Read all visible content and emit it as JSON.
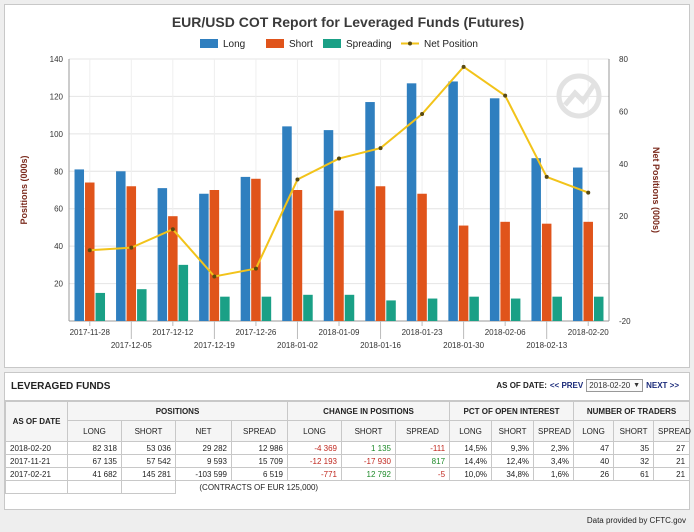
{
  "chart_data": {
    "type": "bar",
    "title": "EUR/USD COT Report for Leveraged Funds (Futures)",
    "categories": [
      "2017-11-28",
      "2017-12-05",
      "2017-12-12",
      "2017-12-19",
      "2017-12-26",
      "2018-01-02",
      "2018-01-09",
      "2018-01-16",
      "2018-01-23",
      "2018-01-30",
      "2018-02-06",
      "2018-02-13",
      "2018-02-20"
    ],
    "series": [
      {
        "name": "Long",
        "axis": "left",
        "kind": "bar",
        "color": "#2f7fbf",
        "values": [
          81,
          80,
          71,
          68,
          77,
          104,
          102,
          117,
          127,
          128,
          119,
          87,
          82
        ]
      },
      {
        "name": "Short",
        "axis": "left",
        "kind": "bar",
        "color": "#e0541b",
        "values": [
          74,
          72,
          56,
          70,
          76,
          70,
          59,
          72,
          68,
          51,
          53,
          52,
          53
        ]
      },
      {
        "name": "Spreading",
        "axis": "left",
        "kind": "bar",
        "color": "#1aa086",
        "values": [
          15,
          17,
          30,
          13,
          13,
          14,
          14,
          11,
          12,
          13,
          12,
          13,
          13
        ]
      },
      {
        "name": "Net Position",
        "axis": "right",
        "kind": "line",
        "color": "#f2c31a",
        "values": [
          7,
          8,
          15,
          -3,
          0,
          34,
          42,
          46,
          59,
          77,
          66,
          35,
          29
        ]
      }
    ],
    "ylabel_left": "Positions (000s)",
    "ylabel_right": "Net Positions (000s)",
    "ylim_left": [
      0,
      140
    ],
    "yticks_left": [
      20,
      40,
      60,
      80,
      100,
      120,
      140
    ],
    "ylim_right": [
      -20,
      80
    ],
    "yticks_right": [
      -20,
      20,
      40,
      60,
      80
    ],
    "grid": true,
    "legend": "top-center"
  },
  "table": {
    "title": "LEVERAGED FUNDS",
    "asof_label": "AS OF DATE:",
    "prev_label": "<< PREV",
    "selected_date": "2018-02-20",
    "next_label": "NEXT >>",
    "asof_col": "AS OF DATE",
    "groups": [
      "POSITIONS",
      "CHANGE IN POSITIONS",
      "PCT OF OPEN INTEREST",
      "NUMBER OF TRADERS"
    ],
    "subheaders": [
      "LONG",
      "SHORT",
      "NET",
      "SPREAD",
      "LONG",
      "SHORT",
      "SPREAD",
      "LONG",
      "SHORT",
      "SPREAD",
      "LONG",
      "SHORT",
      "SPREAD"
    ],
    "rows": [
      {
        "date": "2018-02-20",
        "cells": [
          "82 318",
          "53 036",
          "29 282",
          "12 986",
          "-4 369",
          "1 135",
          "-111",
          "14,5%",
          "9,3%",
          "2,3%",
          "47",
          "35",
          "27"
        ]
      },
      {
        "date": "2017-11-21",
        "cells": [
          "67 135",
          "57 542",
          "9 593",
          "15 709",
          "-12 193",
          "-17 930",
          "817",
          "14,4%",
          "12,4%",
          "3,4%",
          "40",
          "32",
          "21"
        ]
      },
      {
        "date": "2017-02-21",
        "cells": [
          "41 682",
          "145 281",
          "-103 599",
          "6 519",
          "-771",
          "12 792",
          "-5",
          "10,0%",
          "34,8%",
          "1,6%",
          "26",
          "61",
          "21"
        ]
      }
    ],
    "footnote": "(CONTRACTS OF EUR 125,000)"
  },
  "credit": "Data provided by CFTC.gov"
}
